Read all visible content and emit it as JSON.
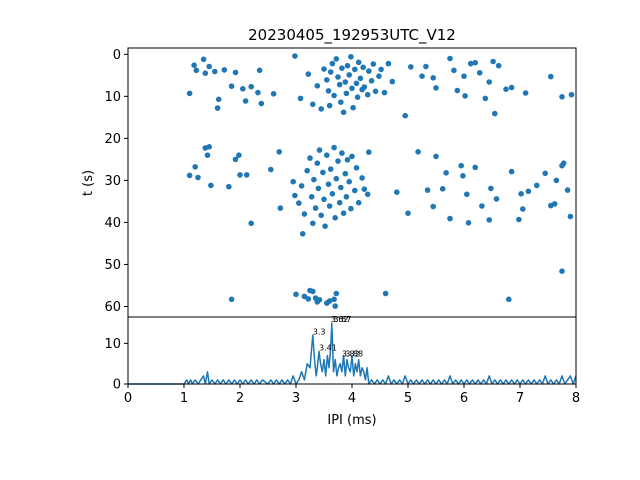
{
  "chart_data": [
    {
      "type": "scatter",
      "title": "20230405_192953UTC_V12",
      "xlabel": "",
      "ylabel": "t (s)",
      "xlim": [
        0,
        8
      ],
      "ylim": [
        62.5,
        -1.5
      ],
      "y_inverted": true,
      "y_ticks": [
        "0",
        "10",
        "20",
        "30",
        "40",
        "50",
        "60"
      ],
      "marker_color": "#1f77b4",
      "points": [
        [
          1.1,
          9.3
        ],
        [
          1.18,
          2.6
        ],
        [
          1.22,
          3.8
        ],
        [
          1.35,
          1.2
        ],
        [
          1.38,
          4.5
        ],
        [
          1.45,
          2.9
        ],
        [
          1.55,
          4.1
        ],
        [
          1.62,
          10.7
        ],
        [
          1.6,
          12.8
        ],
        [
          1.72,
          3.7
        ],
        [
          1.85,
          7.6
        ],
        [
          1.92,
          4.3
        ],
        [
          2.05,
          8.2
        ],
        [
          2.1,
          11.1
        ],
        [
          2.2,
          7.7
        ],
        [
          2.32,
          9.1
        ],
        [
          2.35,
          3.8
        ],
        [
          2.38,
          11.7
        ],
        [
          2.6,
          9.4
        ],
        [
          2.98,
          0.4
        ],
        [
          3.08,
          10.5
        ],
        [
          3.22,
          4.7
        ],
        [
          3.3,
          11.9
        ],
        [
          3.38,
          7.5
        ],
        [
          3.45,
          13.0
        ],
        [
          3.5,
          3.5
        ],
        [
          3.55,
          6.1
        ],
        [
          3.58,
          8.7
        ],
        [
          3.6,
          12.2
        ],
        [
          3.62,
          4.2
        ],
        [
          3.65,
          2.2
        ],
        [
          3.68,
          9.8
        ],
        [
          3.72,
          1.1
        ],
        [
          3.75,
          5.4
        ],
        [
          3.78,
          7.2
        ],
        [
          3.8,
          11.4
        ],
        [
          3.82,
          3.3
        ],
        [
          3.85,
          13.8
        ],
        [
          3.88,
          6.6
        ],
        [
          3.9,
          9.3
        ],
        [
          3.92,
          2.7
        ],
        [
          3.95,
          4.9
        ],
        [
          3.98,
          0.6
        ],
        [
          4.0,
          8.1
        ],
        [
          4.02,
          12.7
        ],
        [
          4.05,
          3.6
        ],
        [
          4.08,
          6.9
        ],
        [
          4.1,
          10.2
        ],
        [
          4.12,
          1.9
        ],
        [
          4.15,
          5.7
        ],
        [
          4.18,
          8.4
        ],
        [
          4.2,
          3.1
        ],
        [
          4.22,
          7.8
        ],
        [
          4.28,
          9.6
        ],
        [
          4.3,
          4.0
        ],
        [
          4.35,
          6.3
        ],
        [
          4.38,
          2.3
        ],
        [
          4.42,
          8.8
        ],
        [
          4.48,
          5.2
        ],
        [
          4.52,
          3.6
        ],
        [
          4.58,
          9.1
        ],
        [
          4.65,
          2.2
        ],
        [
          4.72,
          6.5
        ],
        [
          4.95,
          14.6
        ],
        [
          5.05,
          3.0
        ],
        [
          5.25,
          5.2
        ],
        [
          5.32,
          2.9
        ],
        [
          5.45,
          5.6
        ],
        [
          5.5,
          8.0
        ],
        [
          5.75,
          1.0
        ],
        [
          5.82,
          3.8
        ],
        [
          5.88,
          8.6
        ],
        [
          6.0,
          5.2
        ],
        [
          6.02,
          9.9
        ],
        [
          6.12,
          2.2
        ],
        [
          6.2,
          2.0
        ],
        [
          6.28,
          4.4
        ],
        [
          6.38,
          10.5
        ],
        [
          6.45,
          6.6
        ],
        [
          6.52,
          1.7
        ],
        [
          6.55,
          14.1
        ],
        [
          6.62,
          2.7
        ],
        [
          6.75,
          8.3
        ],
        [
          6.85,
          7.9
        ],
        [
          7.1,
          9.2
        ],
        [
          7.55,
          5.3
        ],
        [
          7.75,
          10.1
        ],
        [
          7.92,
          9.6
        ],
        [
          1.1,
          28.8
        ],
        [
          1.2,
          26.8
        ],
        [
          1.25,
          29.3
        ],
        [
          1.38,
          22.3
        ],
        [
          1.45,
          22.0
        ],
        [
          1.42,
          24.0
        ],
        [
          1.48,
          31.2
        ],
        [
          1.8,
          31.5
        ],
        [
          1.92,
          25.0
        ],
        [
          1.98,
          24.0
        ],
        [
          2.0,
          28.7
        ],
        [
          2.12,
          28.7
        ],
        [
          2.2,
          40.2
        ],
        [
          2.55,
          27.4
        ],
        [
          2.7,
          23.2
        ],
        [
          2.72,
          36.6
        ],
        [
          2.95,
          30.3
        ],
        [
          2.98,
          33.6
        ],
        [
          3.05,
          35.4
        ],
        [
          3.1,
          31.3
        ],
        [
          3.12,
          42.7
        ],
        [
          3.15,
          38.0
        ],
        [
          3.2,
          27.7
        ],
        [
          3.25,
          24.7
        ],
        [
          3.28,
          33.9
        ],
        [
          3.3,
          40.2
        ],
        [
          3.32,
          29.8
        ],
        [
          3.35,
          36.6
        ],
        [
          3.38,
          25.9
        ],
        [
          3.4,
          31.9
        ],
        [
          3.42,
          22.8
        ],
        [
          3.45,
          38.3
        ],
        [
          3.48,
          28.1
        ],
        [
          3.5,
          34.5
        ],
        [
          3.52,
          40.9
        ],
        [
          3.55,
          24.0
        ],
        [
          3.58,
          30.9
        ],
        [
          3.6,
          36.1
        ],
        [
          3.62,
          27.3
        ],
        [
          3.65,
          33.2
        ],
        [
          3.68,
          22.2
        ],
        [
          3.7,
          38.9
        ],
        [
          3.72,
          29.6
        ],
        [
          3.75,
          25.4
        ],
        [
          3.78,
          35.3
        ],
        [
          3.8,
          31.7
        ],
        [
          3.82,
          23.5
        ],
        [
          3.85,
          37.8
        ],
        [
          3.88,
          28.4
        ],
        [
          3.9,
          33.9
        ],
        [
          3.92,
          25.1
        ],
        [
          3.95,
          30.3
        ],
        [
          3.98,
          36.7
        ],
        [
          4.0,
          24.3
        ],
        [
          4.05,
          32.4
        ],
        [
          4.08,
          27.0
        ],
        [
          4.12,
          35.3
        ],
        [
          4.18,
          29.4
        ],
        [
          4.22,
          32.1
        ],
        [
          4.28,
          33.3
        ],
        [
          4.3,
          23.3
        ],
        [
          4.8,
          32.8
        ],
        [
          5.0,
          37.8
        ],
        [
          5.18,
          23.2
        ],
        [
          5.35,
          32.3
        ],
        [
          5.45,
          36.2
        ],
        [
          5.5,
          24.3
        ],
        [
          5.62,
          32.0
        ],
        [
          5.68,
          28.2
        ],
        [
          5.75,
          39.1
        ],
        [
          5.95,
          26.5
        ],
        [
          5.98,
          28.9
        ],
        [
          6.05,
          33.3
        ],
        [
          6.08,
          40.1
        ],
        [
          6.2,
          26.9
        ],
        [
          6.32,
          36.1
        ],
        [
          6.45,
          39.4
        ],
        [
          6.48,
          31.9
        ],
        [
          6.58,
          34.4
        ],
        [
          6.85,
          27.9
        ],
        [
          6.98,
          39.3
        ],
        [
          7.02,
          33.2
        ],
        [
          7.05,
          36.8
        ],
        [
          7.15,
          32.6
        ],
        [
          7.3,
          31.2
        ],
        [
          7.45,
          28.3
        ],
        [
          7.55,
          36.0
        ],
        [
          7.62,
          35.6
        ],
        [
          7.65,
          30.0
        ],
        [
          7.75,
          26.5
        ],
        [
          7.78,
          25.9
        ],
        [
          7.85,
          32.3
        ],
        [
          7.9,
          38.6
        ],
        [
          1.85,
          58.3
        ],
        [
          3.0,
          57.1
        ],
        [
          3.15,
          57.6
        ],
        [
          3.22,
          58.2
        ],
        [
          3.25,
          56.2
        ],
        [
          3.3,
          56.4
        ],
        [
          3.35,
          58.0
        ],
        [
          3.38,
          58.9
        ],
        [
          3.42,
          58.4
        ],
        [
          3.55,
          59.2
        ],
        [
          3.6,
          58.7
        ],
        [
          3.68,
          58.3
        ],
        [
          3.7,
          59.9
        ],
        [
          3.72,
          56.9
        ],
        [
          4.6,
          56.9
        ],
        [
          6.8,
          58.3
        ],
        [
          7.75,
          51.6
        ]
      ]
    },
    {
      "type": "line",
      "title": "",
      "xlabel": "IPI (ms)",
      "ylabel": "",
      "xlim": [
        0,
        8
      ],
      "ylim": [
        0,
        16.5
      ],
      "x_ticks": [
        "0",
        "1",
        "2",
        "3",
        "4",
        "5",
        "6",
        "7",
        "8"
      ],
      "y_ticks": [
        "0",
        "10"
      ],
      "line_color": "#1f77b4",
      "series": [
        {
          "x": [
            0,
            1.0,
            1.05,
            1.08,
            1.12,
            1.15,
            1.2,
            1.25,
            1.3,
            1.35,
            1.38,
            1.42,
            1.45,
            1.5,
            1.55,
            1.6,
            1.65,
            1.7,
            1.75,
            1.8,
            1.85,
            1.9,
            1.95,
            2.0,
            2.05,
            2.1,
            2.15,
            2.2,
            2.25,
            2.3,
            2.35,
            2.4,
            2.5,
            2.55,
            2.6,
            2.65,
            2.7,
            2.75,
            2.8,
            2.85,
            2.9,
            2.95,
            3.0,
            3.05,
            3.1,
            3.15,
            3.2,
            3.25,
            3.28,
            3.3,
            3.33,
            3.36,
            3.38,
            3.41,
            3.44,
            3.47,
            3.5,
            3.53,
            3.56,
            3.59,
            3.62,
            3.64,
            3.67,
            3.7,
            3.73,
            3.76,
            3.79,
            3.82,
            3.85,
            3.88,
            3.91,
            3.94,
            3.97,
            4.0,
            4.03,
            4.06,
            4.09,
            4.12,
            4.15,
            4.18,
            4.21,
            4.24,
            4.27,
            4.3,
            4.35,
            4.4,
            4.45,
            4.5,
            4.55,
            4.6,
            4.65,
            4.7,
            4.75,
            4.8,
            4.85,
            4.9,
            4.95,
            5.0,
            5.05,
            5.1,
            5.15,
            5.2,
            5.25,
            5.3,
            5.35,
            5.4,
            5.45,
            5.5,
            5.55,
            5.6,
            5.65,
            5.7,
            5.75,
            5.8,
            5.85,
            5.9,
            5.95,
            6.0,
            6.05,
            6.1,
            6.15,
            6.2,
            6.25,
            6.3,
            6.35,
            6.4,
            6.45,
            6.5,
            6.55,
            6.6,
            6.65,
            6.7,
            6.75,
            6.8,
            6.85,
            6.9,
            6.95,
            7.0,
            7.05,
            7.1,
            7.15,
            7.2,
            7.25,
            7.3,
            7.35,
            7.4,
            7.45,
            7.5,
            7.55,
            7.6,
            7.65,
            7.7,
            7.75,
            7.8,
            7.85,
            7.9,
            7.95,
            8.0
          ],
          "y": [
            0,
            0,
            1,
            0,
            1,
            0,
            1,
            0,
            1,
            2,
            0,
            3,
            0,
            1,
            0,
            1,
            0,
            1,
            0,
            1,
            0,
            1,
            0,
            1,
            0,
            1,
            0,
            1,
            0,
            1,
            0,
            1,
            0,
            1,
            0,
            1,
            0,
            1,
            0,
            1,
            0,
            2,
            0,
            1,
            3,
            1,
            5,
            4,
            9,
            12,
            6,
            2,
            4,
            8,
            5,
            3,
            6,
            2,
            7,
            4,
            9,
            15,
            3,
            6,
            2,
            4,
            5,
            3,
            7,
            2,
            6,
            4,
            3,
            7,
            2,
            5,
            3,
            6,
            2,
            4,
            3,
            1,
            4,
            0,
            1,
            0,
            1,
            0,
            1,
            0,
            2,
            0,
            1,
            0,
            1,
            0,
            2,
            0,
            1,
            0,
            1,
            0,
            1,
            0,
            1,
            0,
            1,
            0,
            1,
            0,
            1,
            0,
            2,
            0,
            1,
            0,
            1,
            0,
            1,
            0,
            1,
            0,
            1,
            0,
            1,
            0,
            2,
            0,
            1,
            0,
            1,
            0,
            1,
            0,
            1,
            0,
            1,
            0,
            1,
            0,
            1,
            0,
            1,
            0,
            1,
            0,
            2,
            0,
            1,
            0,
            1,
            0,
            2,
            0,
            1,
            2,
            0,
            2
          ]
        }
      ],
      "peak_labels": [
        {
          "x": 3.3,
          "y": 12,
          "text": "3.3"
        },
        {
          "x": 3.41,
          "y": 8,
          "text": "3.41"
        },
        {
          "x": 3.62,
          "y": 15,
          "text": "3.62"
        },
        {
          "x": 3.67,
          "y": 15,
          "text": "3.67"
        },
        {
          "x": 3.82,
          "y": 6.5,
          "text": "3.82"
        },
        {
          "x": 3.88,
          "y": 6.5,
          "text": "3.88"
        }
      ]
    }
  ]
}
